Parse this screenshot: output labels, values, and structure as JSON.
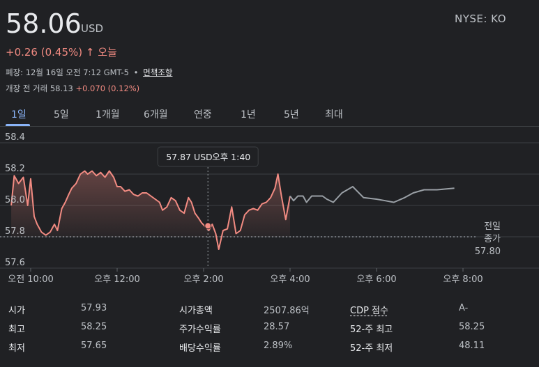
{
  "quote": {
    "price": "58.06",
    "currency": "USD",
    "exchange_ticker": "NYSE: KO",
    "change_text": "+0.26 (0.45%)",
    "change_arrow": "↑",
    "change_period": "오늘",
    "closed_text": "폐장: 12월 16일 오전 7:12 GMT-5",
    "separator": "•",
    "disclaimer_link": "면책조항",
    "premarket_label": "개장 전 거래 58.13",
    "premarket_change": "+0.070 (0.12%)"
  },
  "tabs": [
    "1일",
    "5일",
    "1개월",
    "6개월",
    "연중",
    "1년",
    "5년",
    "최대"
  ],
  "active_tab": "1일",
  "tooltip": {
    "price": "57.87 USD",
    "time": "오후 1:40"
  },
  "colors": {
    "background": "#202124",
    "regular_line": "#f28b82",
    "extended_line": "#9aa0a6",
    "accent_blue": "#8ab4f8"
  },
  "chart_data": {
    "type": "line",
    "x_unit": "hours (time of day)",
    "ylim": [
      57.6,
      58.4
    ],
    "xlim": [
      9.5,
      20.5
    ],
    "yticks": [
      "58.4",
      "58.2",
      "58.0",
      "57.8",
      "57.6"
    ],
    "xticks": [
      {
        "x": 10,
        "label": "오전 10:00"
      },
      {
        "x": 12,
        "label": "오후 12:00"
      },
      {
        "x": 14,
        "label": "오후 2:00"
      },
      {
        "x": 16,
        "label": "오후 4:00"
      },
      {
        "x": 18,
        "label": "오후 6:00"
      },
      {
        "x": 20,
        "label": "오후 8:00"
      }
    ],
    "previous_close": 57.8,
    "previous_close_label": [
      "전일",
      "종가",
      "57.80"
    ],
    "grid": true,
    "series": [
      {
        "segment": "regular",
        "x": [
          9.55,
          9.62,
          9.72,
          9.83,
          9.93,
          10.0,
          10.08,
          10.15,
          10.25,
          10.35,
          10.45,
          10.55,
          10.62,
          10.72,
          10.8,
          10.88,
          10.95,
          11.05,
          11.15,
          11.25,
          11.32,
          11.42,
          11.52,
          11.62,
          11.72,
          11.82,
          11.92,
          12.0,
          12.08,
          12.18,
          12.28,
          12.38,
          12.48,
          12.58,
          12.68,
          12.78,
          12.88,
          12.98,
          13.05,
          13.15,
          13.25,
          13.35,
          13.45,
          13.55,
          13.65,
          13.72,
          13.8,
          13.88,
          13.95,
          14.02,
          14.12,
          14.2,
          14.28,
          14.35,
          14.45,
          14.55,
          14.65,
          14.75,
          14.85,
          14.95,
          15.05,
          15.15,
          15.25,
          15.35,
          15.45,
          15.55,
          15.65,
          15.72,
          15.8,
          15.9,
          16.0
        ],
        "y": [
          58.0,
          58.19,
          58.14,
          58.18,
          58.0,
          58.17,
          57.93,
          57.88,
          57.83,
          57.81,
          57.83,
          57.88,
          57.84,
          57.98,
          58.02,
          58.07,
          58.11,
          58.14,
          58.2,
          58.22,
          58.2,
          58.22,
          58.19,
          58.21,
          58.18,
          58.22,
          58.18,
          58.12,
          58.12,
          58.09,
          58.1,
          58.07,
          58.06,
          58.08,
          58.08,
          58.06,
          58.04,
          58.02,
          57.97,
          57.99,
          58.05,
          58.03,
          57.97,
          57.95,
          58.05,
          58.02,
          57.95,
          57.92,
          57.89,
          57.87,
          57.84,
          57.88,
          57.82,
          57.72,
          57.84,
          57.85,
          57.99,
          57.82,
          57.84,
          57.94,
          57.97,
          57.98,
          57.97,
          58.01,
          58.02,
          58.05,
          58.11,
          58.2,
          58.06,
          57.91,
          58.06
        ]
      },
      {
        "segment": "extended",
        "x": [
          16.0,
          16.08,
          16.18,
          16.3,
          16.38,
          16.5,
          16.62,
          16.75,
          16.85,
          17.0,
          17.2,
          17.45,
          17.7,
          18.0,
          18.2,
          18.4,
          18.65,
          18.85,
          19.1,
          19.4,
          19.8
        ],
        "y": [
          58.06,
          58.03,
          58.06,
          58.06,
          58.02,
          58.06,
          58.06,
          58.06,
          58.04,
          58.02,
          58.08,
          58.12,
          58.05,
          58.04,
          58.03,
          58.02,
          58.05,
          58.08,
          58.1,
          58.1,
          58.11
        ]
      }
    ],
    "tooltip_point": {
      "x": 14.1,
      "y": 57.87
    }
  },
  "stats": [
    [
      {
        "label": "시가",
        "value": "57.93"
      },
      {
        "label": "시가총액",
        "value": "2507.86억"
      },
      {
        "label": "CDP 점수",
        "value": "A-"
      }
    ],
    [
      {
        "label": "최고",
        "value": "58.25"
      },
      {
        "label": "주가수익률",
        "value": "28.57"
      },
      {
        "label": "52-주 최고",
        "value": "58.25"
      }
    ],
    [
      {
        "label": "최저",
        "value": "57.65"
      },
      {
        "label": "배당수익률",
        "value": "2.89%"
      },
      {
        "label": "52-주 최저",
        "value": "48.11"
      }
    ]
  ]
}
